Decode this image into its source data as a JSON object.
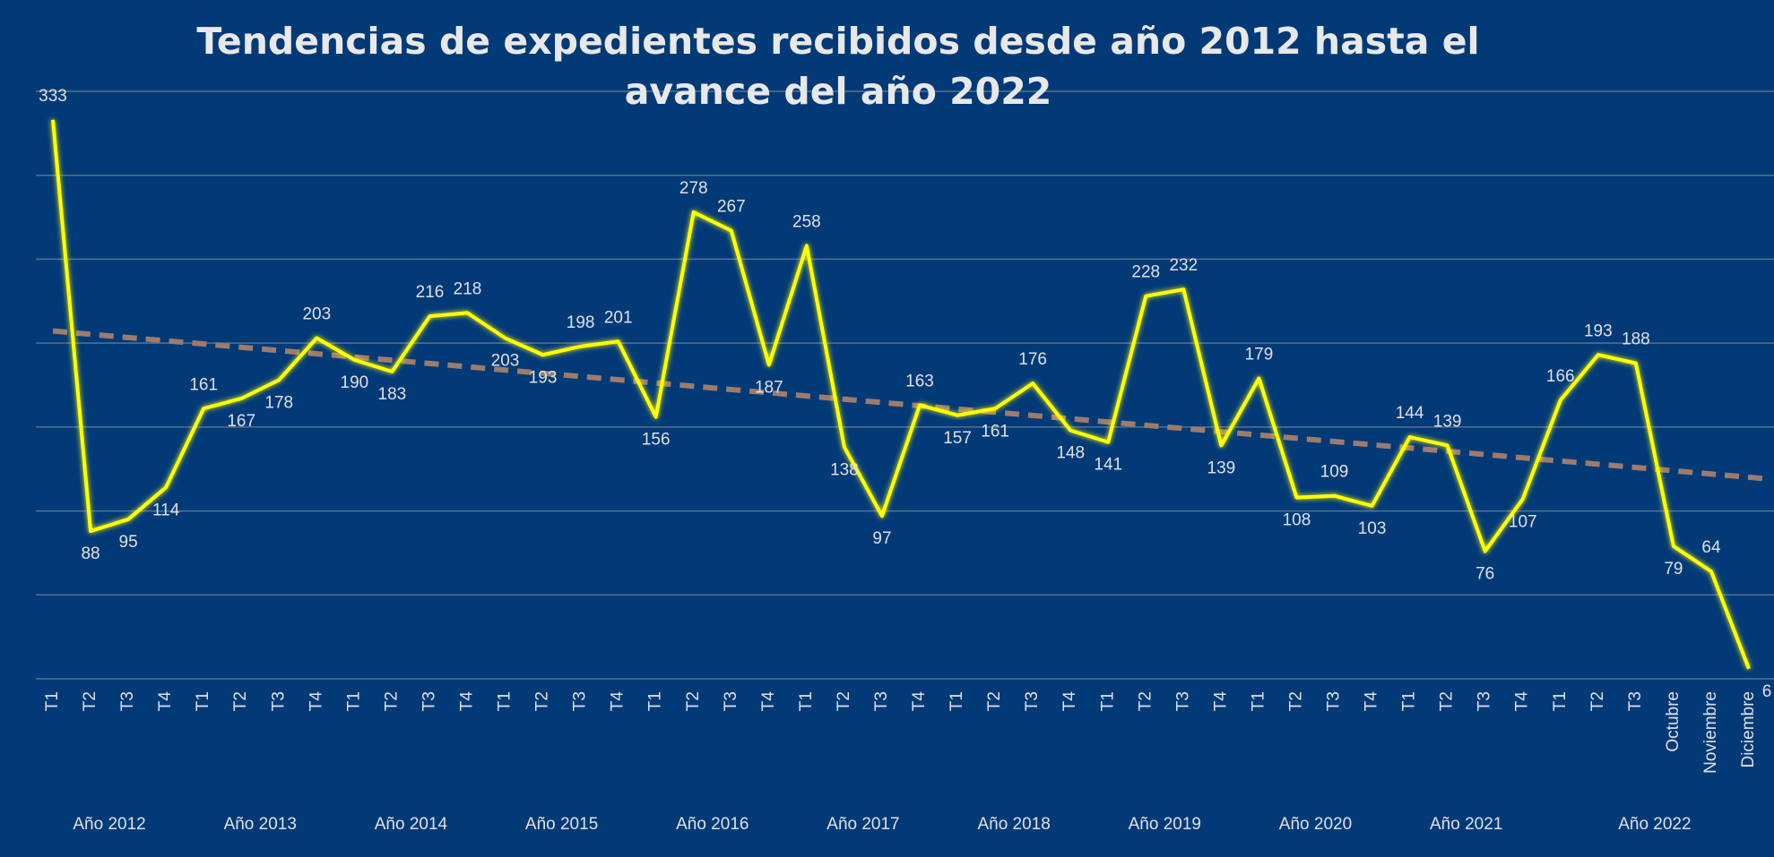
{
  "chart_data": {
    "type": "line",
    "title": "Tendencias de expedientes recibidos desde año 2012 hasta el avance del año 2022",
    "categories": [
      "T1",
      "T2",
      "T3",
      "T4",
      "T1",
      "T2",
      "T3",
      "T4",
      "T1",
      "T2",
      "T3",
      "T4",
      "T1",
      "T2",
      "T3",
      "T4",
      "T1",
      "T2",
      "T3",
      "T4",
      "T1",
      "T2",
      "T3",
      "T4",
      "T1",
      "T2",
      "T3",
      "T4",
      "T1",
      "T2",
      "T3",
      "T4",
      "T1",
      "T2",
      "T3",
      "T4",
      "T1",
      "T2",
      "T3",
      "T4",
      "T1",
      "T2",
      "T3",
      "Octubre",
      "Noviembre",
      "Diciembre"
    ],
    "groups": [
      {
        "name": "Año 2012",
        "size": 4
      },
      {
        "name": "Año 2013",
        "size": 4
      },
      {
        "name": "Año 2014",
        "size": 4
      },
      {
        "name": "Año 2015",
        "size": 4
      },
      {
        "name": "Año 2016",
        "size": 4
      },
      {
        "name": "Año 2017",
        "size": 4
      },
      {
        "name": "Año 2018",
        "size": 4
      },
      {
        "name": "Año 2019",
        "size": 4
      },
      {
        "name": "Año 2020",
        "size": 4
      },
      {
        "name": "Año 2021",
        "size": 4
      },
      {
        "name": "Año 2022",
        "size": 6
      }
    ],
    "values": [
      333,
      88,
      95,
      114,
      161,
      167,
      178,
      203,
      190,
      183,
      216,
      218,
      203,
      193,
      198,
      201,
      156,
      278,
      267,
      187,
      258,
      138,
      97,
      163,
      157,
      161,
      176,
      148,
      141,
      228,
      232,
      139,
      179,
      108,
      109,
      103,
      144,
      139,
      76,
      107,
      166,
      193,
      188,
      79,
      64,
      6
    ],
    "color": "#ffff00",
    "trendline": "linear",
    "trend_color": "#9e7b6c",
    "ylim": [
      0,
      350
    ],
    "yticks": [
      0,
      50,
      100,
      150,
      200,
      250,
      300,
      350
    ],
    "grid": true
  }
}
